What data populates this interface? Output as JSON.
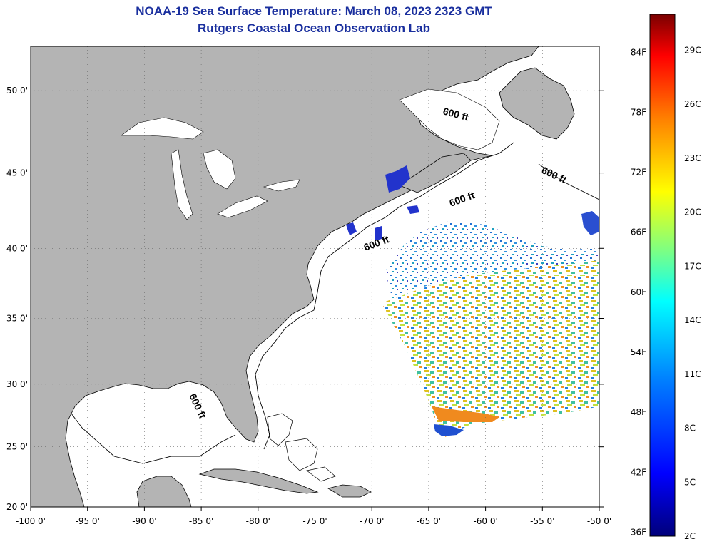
{
  "header": {
    "title": "NOAA-19 Sea Surface Temperature:  March 08, 2023 2323 GMT",
    "subtitle": "Rutgers Coastal Ocean Observation Lab"
  },
  "axes": {
    "lat_labels": [
      "50 0'",
      "45 0'",
      "40 0'",
      "35 0'",
      "30 0'",
      "25 0'",
      "20 0'"
    ],
    "lon_labels": [
      "-100 0'",
      "-95 0'",
      "-90 0'",
      "-85 0'",
      "-80 0'",
      "-75 0'",
      "-70 0'",
      "-65 0'",
      "-60 0'",
      "-55 0'",
      "-50 0'"
    ],
    "lat_range": [
      20,
      52.5
    ],
    "lon_range": [
      -100,
      -50
    ]
  },
  "contours": {
    "depth_label": "600 ft"
  },
  "colorbar": {
    "fahrenheit_labels": [
      "84F",
      "78F",
      "72F",
      "66F",
      "60F",
      "54F",
      "48F",
      "42F",
      "36F"
    ],
    "celsius_labels": [
      "29C",
      "26C",
      "23C",
      "20C",
      "17C",
      "14C",
      "11C",
      "8C",
      "5C",
      "2C"
    ],
    "range_celsius": [
      2,
      31
    ]
  },
  "colors": {
    "land": "#b4b4b4",
    "ocean": "#ffffff",
    "title": "#1a2f9e",
    "grid": "#555555"
  }
}
